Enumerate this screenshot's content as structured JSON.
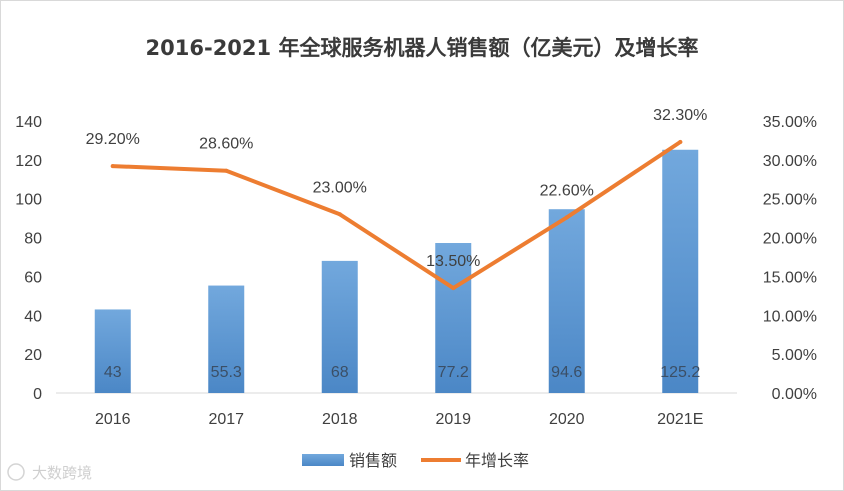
{
  "chart_data": {
    "type": "bar",
    "title": "2016-2021 年全球服务机器人销售额（亿美元）及增长率",
    "categories": [
      "2016",
      "2017",
      "2018",
      "2019",
      "2020",
      "2021E"
    ],
    "series": [
      {
        "name": "销售额",
        "type": "bar",
        "axis": "left",
        "values": [
          43,
          55.3,
          68,
          77.2,
          94.6,
          125.2
        ],
        "labels": [
          "43",
          "55.3",
          "68",
          "77.2",
          "94.6",
          "125.2"
        ],
        "color": "#5b9bd5"
      },
      {
        "name": "年增长率",
        "type": "line",
        "axis": "right",
        "values": [
          29.2,
          28.6,
          23.0,
          13.5,
          22.6,
          32.3
        ],
        "labels": [
          "29.20%",
          "28.60%",
          "23.00%",
          "13.50%",
          "22.60%",
          "32.30%"
        ],
        "color": "#ed7d31"
      }
    ],
    "y_left": {
      "range": [
        0,
        140
      ],
      "ticks": [
        0,
        20,
        40,
        60,
        80,
        100,
        120,
        140
      ],
      "tick_labels": [
        "0",
        "20",
        "40",
        "60",
        "80",
        "100",
        "120",
        "140"
      ]
    },
    "y_right": {
      "range": [
        0,
        35
      ],
      "ticks": [
        0,
        5,
        10,
        15,
        20,
        25,
        30,
        35
      ],
      "tick_labels": [
        "0.00%",
        "5.00%",
        "10.00%",
        "15.00%",
        "20.00%",
        "25.00%",
        "30.00%",
        "35.00%"
      ]
    },
    "grid": false,
    "legend": "bottom"
  },
  "watermark": {
    "text": "大数跨境"
  }
}
